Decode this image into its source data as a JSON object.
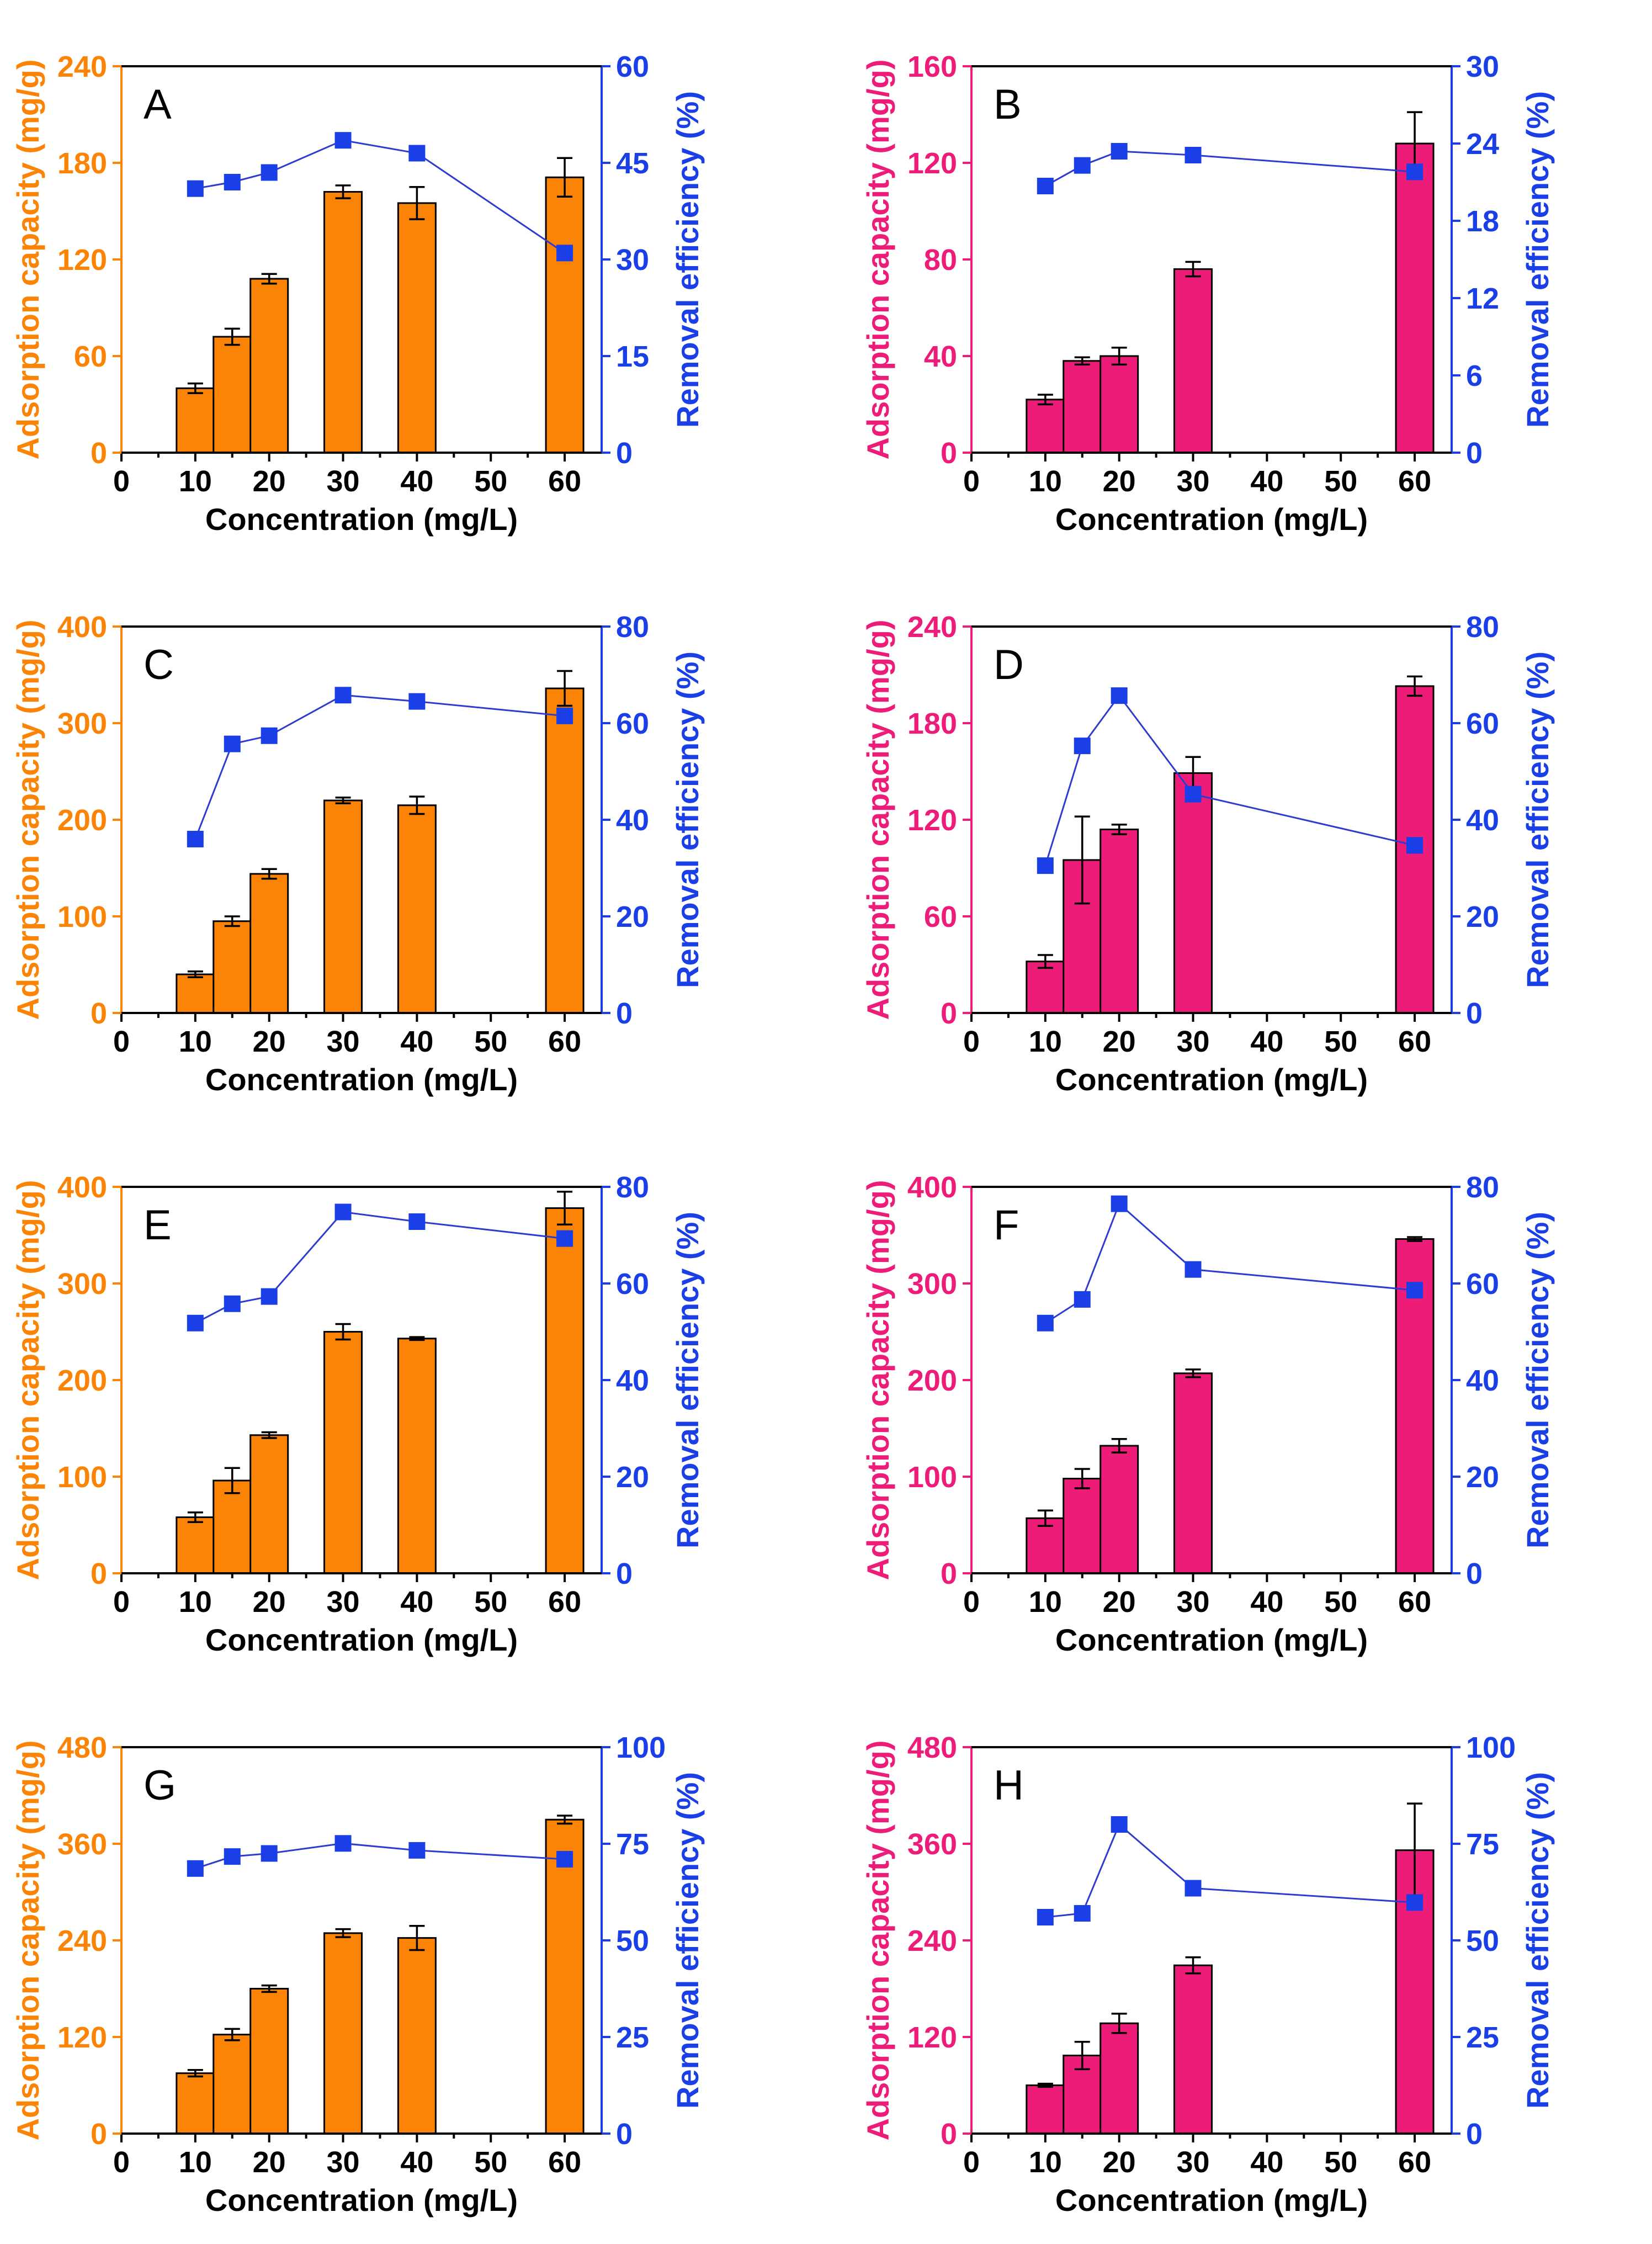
{
  "colors": {
    "orange": "#fb8306",
    "pink": "#ed1c79",
    "blue": "#1a3fe6",
    "blue_line": "#2f3bd0",
    "axis_black": "#000000"
  },
  "chart_data": [
    {
      "panel": "A",
      "type": "bar",
      "bar_color_name": "orange",
      "title": "",
      "xlabel": "Concentration (mg/L)",
      "ylabel_left": "Adsorption capacity (mg/g)",
      "ylabel_right": "Removal efficiency (%)",
      "xlim": [
        0,
        65
      ],
      "xticks": [
        0,
        10,
        20,
        30,
        40,
        50,
        60
      ],
      "ylim_left": [
        0,
        240
      ],
      "yticks_left": [
        0,
        60,
        120,
        180,
        240
      ],
      "ylim_right": [
        0,
        60
      ],
      "yticks_right": [
        0,
        15,
        30,
        45,
        60
      ],
      "x": [
        10,
        15,
        20,
        30,
        40,
        60
      ],
      "series": [
        {
          "name": "Adsorption capacity",
          "axis": "left",
          "kind": "bar",
          "values": [
            40,
            72,
            108,
            162,
            155,
            171
          ],
          "errors": [
            3,
            5,
            3,
            4,
            10,
            12
          ]
        },
        {
          "name": "Removal efficiency",
          "axis": "right",
          "kind": "line-marker",
          "values": [
            41,
            42,
            43.5,
            48.5,
            46.5,
            31
          ]
        }
      ]
    },
    {
      "panel": "B",
      "type": "bar",
      "bar_color_name": "pink",
      "title": "",
      "xlabel": "Concentration (mg/L)",
      "ylabel_left": "Adsorption capacity (mg/g)",
      "ylabel_right": "Removal efficiency (%)",
      "xlim": [
        0,
        65
      ],
      "xticks": [
        0,
        10,
        20,
        30,
        40,
        50,
        60
      ],
      "ylim_left": [
        0,
        160
      ],
      "yticks_left": [
        0,
        40,
        80,
        120,
        160
      ],
      "ylim_right": [
        0,
        30
      ],
      "yticks_right": [
        0,
        6,
        12,
        18,
        24,
        30
      ],
      "x": [
        10,
        15,
        20,
        30,
        60
      ],
      "series": [
        {
          "name": "Adsorption capacity",
          "axis": "left",
          "kind": "bar",
          "values": [
            22,
            38,
            40,
            76,
            128
          ],
          "errors": [
            2,
            1.5,
            3.5,
            3,
            13
          ]
        },
        {
          "name": "Removal efficiency",
          "axis": "right",
          "kind": "line-marker",
          "values": [
            20.7,
            22.3,
            23.4,
            23.1,
            21.8
          ]
        }
      ]
    },
    {
      "panel": "C",
      "type": "bar",
      "bar_color_name": "orange",
      "title": "",
      "xlabel": "Concentration (mg/L)",
      "ylabel_left": "Adsorption capacity (mg/g)",
      "ylabel_right": "Removal efficiency (%)",
      "xlim": [
        0,
        65
      ],
      "xticks": [
        0,
        10,
        20,
        30,
        40,
        50,
        60
      ],
      "ylim_left": [
        0,
        400
      ],
      "yticks_left": [
        0,
        100,
        200,
        300,
        400
      ],
      "ylim_right": [
        0,
        80
      ],
      "yticks_right": [
        0,
        20,
        40,
        60,
        80
      ],
      "x": [
        10,
        15,
        20,
        30,
        40,
        60
      ],
      "series": [
        {
          "name": "Adsorption capacity",
          "axis": "left",
          "kind": "bar",
          "values": [
            40,
            95,
            144,
            220,
            215,
            336
          ],
          "errors": [
            3,
            5,
            5,
            3,
            9,
            18
          ]
        },
        {
          "name": "Removal efficiency",
          "axis": "right",
          "kind": "line-marker",
          "values": [
            36,
            55.7,
            57.4,
            65.8,
            64.5,
            61.5
          ]
        }
      ]
    },
    {
      "panel": "D",
      "type": "bar",
      "bar_color_name": "pink",
      "title": "",
      "xlabel": "Concentration (mg/L)",
      "ylabel_left": "Adsorption capacity (mg/g)",
      "ylabel_right": "Removal efficiency (%)",
      "xlim": [
        0,
        65
      ],
      "xticks": [
        0,
        10,
        20,
        30,
        40,
        50,
        60
      ],
      "ylim_left": [
        0,
        240
      ],
      "yticks_left": [
        0,
        60,
        120,
        180,
        240
      ],
      "ylim_right": [
        0,
        80
      ],
      "yticks_right": [
        0,
        20,
        40,
        60,
        80
      ],
      "x": [
        10,
        15,
        20,
        30,
        60
      ],
      "series": [
        {
          "name": "Adsorption capacity",
          "axis": "left",
          "kind": "bar",
          "values": [
            32,
            95,
            114,
            149,
            203
          ],
          "errors": [
            4,
            27,
            3,
            10,
            6
          ]
        },
        {
          "name": "Removal efficiency",
          "axis": "right",
          "kind": "line-marker",
          "values": [
            30.5,
            55.3,
            65.7,
            45.3,
            34.7
          ]
        }
      ]
    },
    {
      "panel": "E",
      "type": "bar",
      "bar_color_name": "orange",
      "title": "",
      "xlabel": "Concentration (mg/L)",
      "ylabel_left": "Adsorption capacity (mg/g)",
      "ylabel_right": "Removal efficiency (%)",
      "xlim": [
        0,
        65
      ],
      "xticks": [
        0,
        10,
        20,
        30,
        40,
        50,
        60
      ],
      "ylim_left": [
        0,
        400
      ],
      "yticks_left": [
        0,
        100,
        200,
        300,
        400
      ],
      "ylim_right": [
        0,
        80
      ],
      "yticks_right": [
        0,
        20,
        40,
        60,
        80
      ],
      "x": [
        10,
        15,
        20,
        30,
        40,
        60
      ],
      "series": [
        {
          "name": "Adsorption capacity",
          "axis": "left",
          "kind": "bar",
          "values": [
            58,
            96,
            143,
            250,
            243,
            378
          ],
          "errors": [
            5,
            13,
            3,
            8,
            1.5,
            17
          ]
        },
        {
          "name": "Removal efficiency",
          "axis": "right",
          "kind": "line-marker",
          "values": [
            51.8,
            55.8,
            57.3,
            74.8,
            72.8,
            69.3
          ]
        }
      ]
    },
    {
      "panel": "F",
      "type": "bar",
      "bar_color_name": "pink",
      "title": "",
      "xlabel": "Concentration (mg/L)",
      "ylabel_left": "Adsorption capacity (mg/g)",
      "ylabel_right": "Removal efficiency (%)",
      "xlim": [
        0,
        65
      ],
      "xticks": [
        0,
        10,
        20,
        30,
        40,
        50,
        60
      ],
      "ylim_left": [
        0,
        400
      ],
      "yticks_left": [
        0,
        100,
        200,
        300,
        400
      ],
      "ylim_right": [
        0,
        80
      ],
      "yticks_right": [
        0,
        20,
        40,
        60,
        80
      ],
      "x": [
        10,
        15,
        20,
        30,
        60
      ],
      "series": [
        {
          "name": "Adsorption capacity",
          "axis": "left",
          "kind": "bar",
          "values": [
            57,
            98,
            132,
            207,
            346
          ],
          "errors": [
            8,
            10,
            7,
            4,
            2
          ]
        },
        {
          "name": "Removal efficiency",
          "axis": "right",
          "kind": "line-marker",
          "values": [
            51.8,
            56.7,
            76.5,
            62.9,
            58.6
          ]
        }
      ]
    },
    {
      "panel": "G",
      "type": "bar",
      "bar_color_name": "orange",
      "title": "",
      "xlabel": "Concentration (mg/L)",
      "ylabel_left": "Adsorption capacity (mg/g)",
      "ylabel_right": "Removal efficiency (%)",
      "xlim": [
        0,
        65
      ],
      "xticks": [
        0,
        10,
        20,
        30,
        40,
        50,
        60
      ],
      "ylim_left": [
        0,
        480
      ],
      "yticks_left": [
        0,
        120,
        240,
        360,
        480
      ],
      "ylim_right": [
        0,
        100
      ],
      "yticks_right": [
        0,
        25,
        50,
        75,
        100
      ],
      "x": [
        10,
        15,
        20,
        30,
        40,
        60
      ],
      "series": [
        {
          "name": "Adsorption capacity",
          "axis": "left",
          "kind": "bar",
          "values": [
            75,
            123,
            180,
            249,
            243,
            390
          ],
          "errors": [
            4,
            7,
            4,
            5,
            15,
            5
          ]
        },
        {
          "name": "Removal efficiency",
          "axis": "right",
          "kind": "line-marker",
          "values": [
            68.6,
            71.7,
            72.5,
            75.1,
            73.3,
            71
          ]
        }
      ]
    },
    {
      "panel": "H",
      "type": "bar",
      "bar_color_name": "pink",
      "title": "",
      "xlabel": "Concentration (mg/L)",
      "ylabel_left": "Adsorption capacity (mg/g)",
      "ylabel_right": "Removal efficiency (%)",
      "xlim": [
        0,
        65
      ],
      "xticks": [
        0,
        10,
        20,
        30,
        40,
        50,
        60
      ],
      "ylim_left": [
        0,
        480
      ],
      "yticks_left": [
        0,
        120,
        240,
        360,
        480
      ],
      "ylim_right": [
        0,
        100
      ],
      "yticks_right": [
        0,
        25,
        50,
        75,
        100
      ],
      "x": [
        10,
        15,
        20,
        30,
        60
      ],
      "series": [
        {
          "name": "Adsorption capacity",
          "axis": "left",
          "kind": "bar",
          "values": [
            60,
            97,
            137,
            209,
            352
          ],
          "errors": [
            2,
            17,
            12,
            10,
            58
          ]
        },
        {
          "name": "Removal efficiency",
          "axis": "right",
          "kind": "line-marker",
          "values": [
            56,
            57,
            80,
            63.5,
            59.8
          ]
        }
      ]
    }
  ]
}
